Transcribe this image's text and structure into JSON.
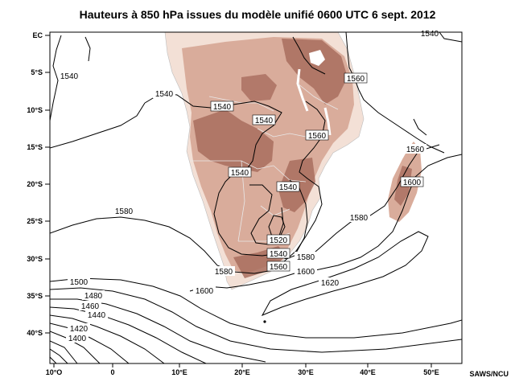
{
  "title": "Hauteurs à 850 hPa issues du modèle unifié 0600 UTC 6 sept. 2012",
  "credit": "SAWS/NCU",
  "latitude_labels": [
    "EC",
    "5°S",
    "10°S",
    "15°S",
    "20°S",
    "25°S",
    "30°S",
    "35°S",
    "40°S"
  ],
  "longitude_labels": [
    "10°O",
    "0",
    "10°E",
    "20°E",
    "30°E",
    "40°E",
    "50°E"
  ],
  "contour_labels": {
    "l1540_atl": "1540",
    "l1540_a": "1540",
    "l1540_b": "1540",
    "l1540_c": "1540",
    "l1540_d": "1540",
    "l1540_e": "1540",
    "l1540_ne": "1540",
    "l1560_a": "1560",
    "l1560_b": "1560",
    "l1560_c": "1560",
    "l1560_d": "1560",
    "l1580_a": "1580",
    "l1580_b": "1580",
    "l1580_c": "1580",
    "l1580_d": "1580",
    "l1520": "1520",
    "l1600_a": "1600",
    "l1600_b": "1600",
    "l1600_c": "1600",
    "l1620": "1620",
    "l1500": "1500",
    "l1480": "1480",
    "l1460": "1460",
    "l1440": "1440",
    "l1420": "1420",
    "l1400": "1400"
  },
  "colors": {
    "land_low": "#f3e0d6",
    "land_mid": "#d9ac9b",
    "land_high": "#a86d5e",
    "contour": "#000000",
    "frame": "#000000"
  }
}
